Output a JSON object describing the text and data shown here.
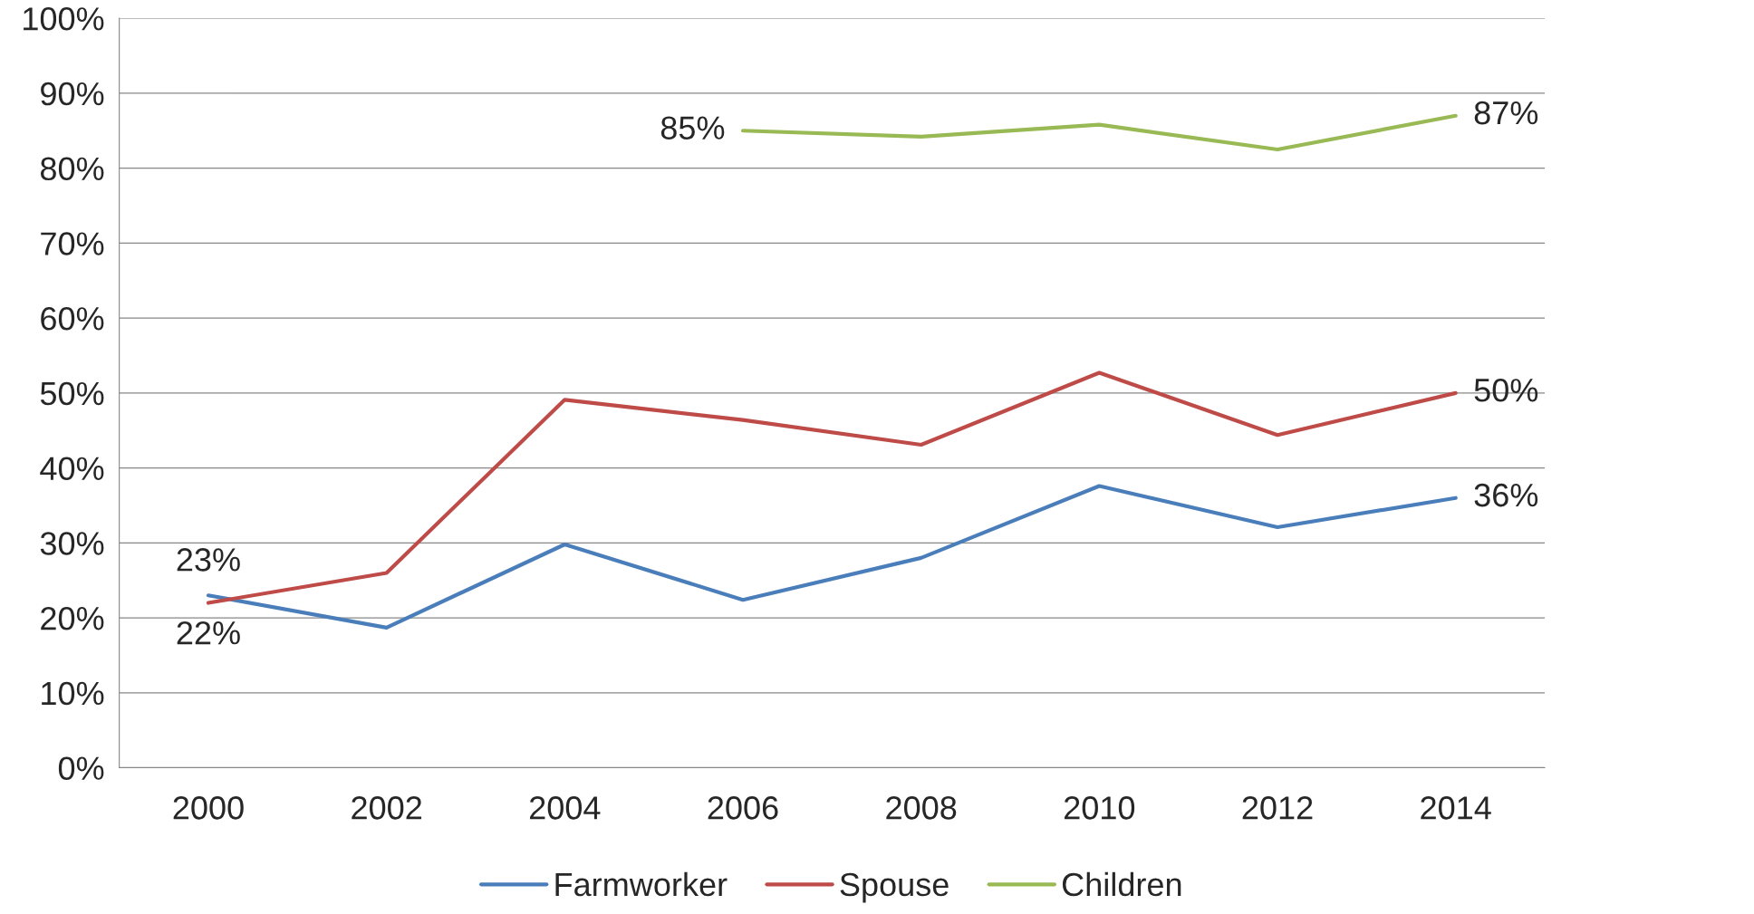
{
  "chart_data": {
    "type": "line",
    "categories": [
      "2000",
      "2002",
      "2004",
      "2006",
      "2008",
      "2010",
      "2012",
      "2014"
    ],
    "series": [
      {
        "name": "Farmworker",
        "color": "#4a7ebb",
        "values": [
          23,
          18.7,
          29.8,
          22.4,
          28,
          37.6,
          32.1,
          36
        ],
        "value_labels": [
          "23%",
          null,
          null,
          null,
          null,
          null,
          null,
          "36%"
        ]
      },
      {
        "name": "Spouse",
        "color": "#be4b48",
        "values": [
          22,
          26,
          49.1,
          46.4,
          43.1,
          52.7,
          44.4,
          50
        ],
        "value_labels": [
          "22%",
          null,
          null,
          null,
          null,
          null,
          null,
          "50%"
        ]
      },
      {
        "name": "Children",
        "color": "#98b954",
        "values": [
          null,
          null,
          null,
          85,
          84.2,
          85.8,
          82.5,
          87
        ],
        "value_labels": [
          null,
          null,
          null,
          "85%",
          null,
          null,
          null,
          "87%"
        ]
      }
    ],
    "ylim": [
      0,
      100
    ],
    "yticks": [
      {
        "value": 0,
        "label": "0%"
      },
      {
        "value": 10,
        "label": "10%"
      },
      {
        "value": 20,
        "label": "20%"
      },
      {
        "value": 30,
        "label": "30%"
      },
      {
        "value": 40,
        "label": "40%"
      },
      {
        "value": 50,
        "label": "50%"
      },
      {
        "value": 60,
        "label": "60%"
      },
      {
        "value": 70,
        "label": "70%"
      },
      {
        "value": 80,
        "label": "80%"
      },
      {
        "value": 90,
        "label": "90%"
      },
      {
        "value": 100,
        "label": "100%"
      }
    ],
    "grid": "y",
    "legend": "bottom",
    "marker": "none",
    "line_style": "solid"
  }
}
